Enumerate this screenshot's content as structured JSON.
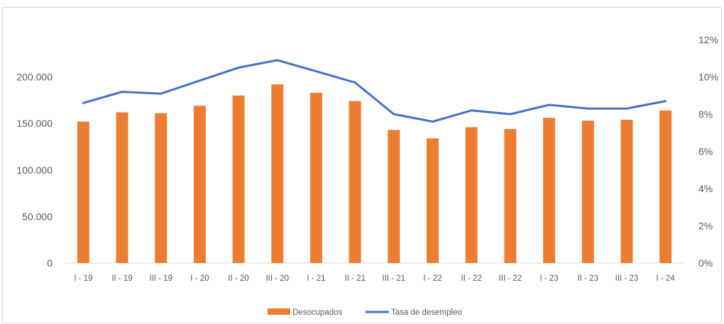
{
  "chart_data": {
    "type": "bar",
    "categories": [
      "I - 19",
      "II - 19",
      "III - 19",
      "I - 20",
      "II - 20",
      "III - 20",
      "I - 21",
      "II - 21",
      "III - 21",
      "I - 22",
      "II - 22",
      "III - 22",
      "I - 23",
      "II - 23",
      "III - 23",
      "I - 24"
    ],
    "series": [
      {
        "name": "Desocupados",
        "type": "bar",
        "axis": "left",
        "color": "#ED7D31",
        "values": [
          152000,
          162000,
          161000,
          169000,
          180000,
          192000,
          183000,
          174000,
          143000,
          134000,
          146000,
          144000,
          156000,
          153000,
          154000,
          164000
        ]
      },
      {
        "name": "Tasa de desempleo",
        "type": "line",
        "axis": "right",
        "color": "#4472C4",
        "values": [
          8.6,
          9.2,
          9.1,
          9.8,
          10.5,
          10.9,
          10.3,
          9.7,
          8.0,
          7.6,
          8.2,
          8.0,
          8.5,
          8.3,
          8.3,
          8.7
        ]
      }
    ],
    "y_left": {
      "ylim": [
        0,
        240000
      ],
      "ticks": [
        0,
        50000,
        100000,
        150000,
        200000
      ],
      "tick_labels": [
        "0",
        "50.000",
        "100.000",
        "150.000",
        "200.000"
      ]
    },
    "y_right": {
      "ylim": [
        0,
        12
      ],
      "ticks": [
        0,
        2,
        4,
        6,
        8,
        10,
        12
      ],
      "tick_labels": [
        "0%",
        "2%",
        "4%",
        "6%",
        "8%",
        "10%",
        "12%"
      ]
    },
    "title": "",
    "xlabel": "",
    "ylabel": "",
    "grid": false,
    "legend": "bottom"
  }
}
